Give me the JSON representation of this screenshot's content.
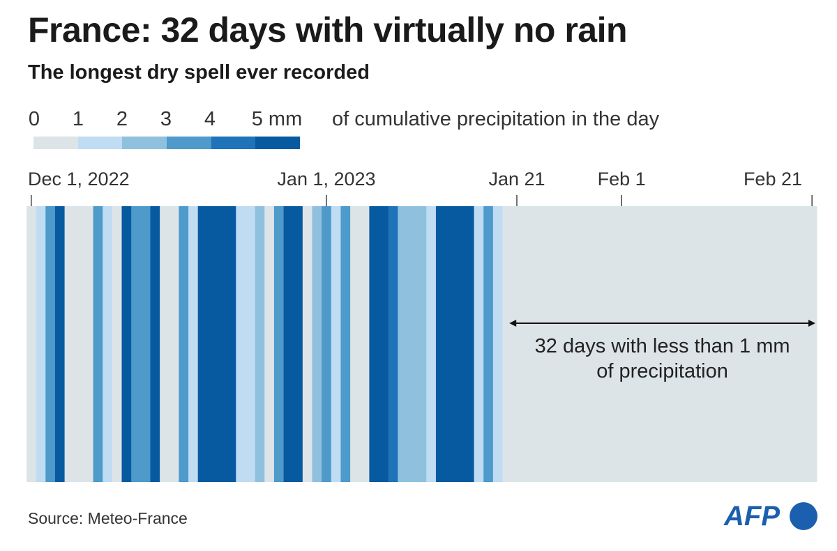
{
  "header": {
    "title": "France: 32 days with virtually no rain",
    "subtitle": "The longest dry spell ever recorded"
  },
  "legend": {
    "ticks": [
      "0",
      "1",
      "2",
      "3",
      "4",
      "5 mm"
    ],
    "caption": "of cumulative precipitation in the day",
    "colors": [
      "#dde4e8",
      "#c0dcf2",
      "#8fc1df",
      "#4d9acb",
      "#1f73b8",
      "#075aa0"
    ]
  },
  "source": "Source: Meteo-France",
  "logo_text": "AFP",
  "chart_data": {
    "type": "heatmap",
    "title": "France: 32 days with virtually no rain",
    "subtitle": "The longest dry spell ever recorded",
    "value_unit": "mm",
    "value_bins": [
      0,
      1,
      2,
      3,
      4,
      5
    ],
    "start_date": "2022-12-01",
    "end_date": "2023-02-21",
    "x_tick_labels": [
      {
        "date": "2022-12-01",
        "label": "Dec 1, 2022"
      },
      {
        "date": "2023-01-01",
        "label": "Jan 1, 2023"
      },
      {
        "date": "2023-01-21",
        "label": "Jan 21"
      },
      {
        "date": "2023-02-01",
        "label": "Feb 1"
      },
      {
        "date": "2023-02-21",
        "label": "Feb 21"
      }
    ],
    "daily_level": [
      0,
      1,
      3,
      5,
      0,
      0,
      0,
      3,
      1,
      0,
      5,
      3,
      3,
      5,
      0,
      0,
      3,
      1,
      5,
      5,
      5,
      5,
      1,
      1,
      2,
      0,
      3,
      5,
      5,
      0,
      2,
      3,
      1,
      3,
      0,
      0,
      5,
      5,
      4,
      2,
      2,
      2,
      1,
      5,
      5,
      5,
      5,
      1,
      3,
      1,
      0,
      0,
      0,
      0,
      0,
      0,
      0,
      0,
      0,
      0,
      0,
      0,
      0,
      0,
      0,
      0,
      0,
      0,
      0,
      0,
      0,
      0,
      0,
      0,
      0,
      0,
      0,
      0,
      0,
      0,
      0,
      0,
      0
    ],
    "annotation": {
      "text_lines": [
        "32 days with less than 1 mm",
        "of precipitation"
      ],
      "from": "2023-01-21",
      "to": "2023-02-21"
    }
  }
}
